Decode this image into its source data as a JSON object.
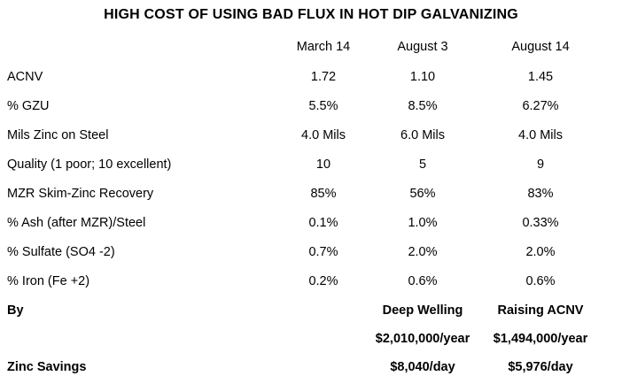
{
  "title": "HIGH COST OF USING BAD FLUX IN HOT DIP GALVANIZING",
  "columns": [
    "March 14",
    "August 3",
    "August 14"
  ],
  "rows": [
    {
      "label": "ACNV",
      "values": [
        "1.72",
        "1.10",
        "1.45"
      ]
    },
    {
      "label": "% GZU",
      "values": [
        "5.5%",
        "8.5%",
        "6.27%"
      ]
    },
    {
      "label": "Mils Zinc on Steel",
      "values": [
        "4.0 Mils",
        "6.0 Mils",
        "4.0 Mils"
      ]
    },
    {
      "label": "Quality (1 poor; 10 excellent)",
      "values": [
        "10",
        "5",
        "9"
      ]
    },
    {
      "label": "MZR Skim-Zinc Recovery",
      "values": [
        "85%",
        "56%",
        "83%"
      ]
    },
    {
      "label": "% Ash (after MZR)/Steel",
      "values": [
        "0.1%",
        "1.0%",
        "0.33%"
      ]
    },
    {
      "label": "% Sulfate (SO4 -2)",
      "values": [
        "0.7%",
        "2.0%",
        "2.0%"
      ]
    },
    {
      "label": "% Iron (Fe +2)",
      "values": [
        "0.2%",
        "0.6%",
        "0.6%"
      ]
    }
  ],
  "by": {
    "label": "By",
    "col2": "Deep Welling",
    "col3": "Raising ACNV"
  },
  "per_year": {
    "col2": "$2,010,000/year",
    "col3": "$1,494,000/year"
  },
  "zinc_savings": {
    "label": "Zinc Savings",
    "col2": "$8,040/day",
    "col3": "$5,976/day"
  }
}
